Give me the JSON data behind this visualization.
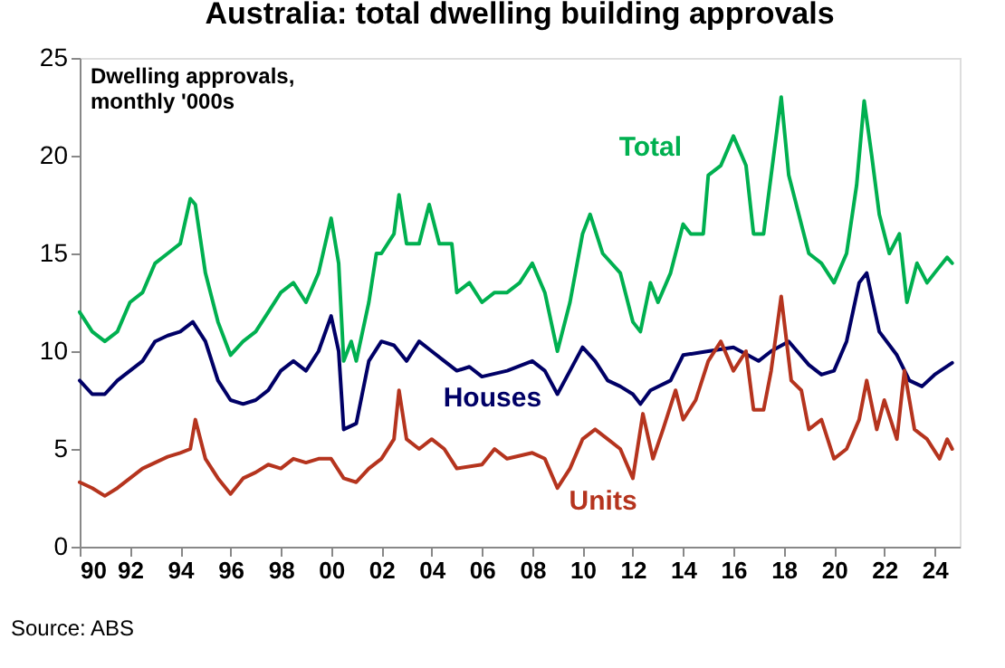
{
  "chart_data": {
    "type": "line",
    "title": "Australia: total dwelling building approvals",
    "ylabel": "Dwelling approvals, monthly '000s",
    "annotations": [
      "Source: ABS"
    ],
    "xlim": [
      1990,
      2025
    ],
    "ylim": [
      0,
      25
    ],
    "yticks": [
      0,
      5,
      10,
      15,
      20,
      25
    ],
    "xticks": [
      {
        "value": 1990,
        "label": "90"
      },
      {
        "value": 1992,
        "label": "92"
      },
      {
        "value": 1994,
        "label": "94"
      },
      {
        "value": 1996,
        "label": "96"
      },
      {
        "value": 1998,
        "label": "98"
      },
      {
        "value": 2000,
        "label": "00"
      },
      {
        "value": 2002,
        "label": "02"
      },
      {
        "value": 2004,
        "label": "04"
      },
      {
        "value": 2006,
        "label": "06"
      },
      {
        "value": 2008,
        "label": "08"
      },
      {
        "value": 2010,
        "label": "10"
      },
      {
        "value": 2012,
        "label": "12"
      },
      {
        "value": 2014,
        "label": "14"
      },
      {
        "value": 2016,
        "label": "16"
      },
      {
        "value": 2018,
        "label": "18"
      },
      {
        "value": 2020,
        "label": "20"
      },
      {
        "value": 2022,
        "label": "22"
      },
      {
        "value": 2024,
        "label": "24"
      }
    ],
    "grid": false,
    "marker": "none",
    "line_style": "solid",
    "series": [
      {
        "name": "Total",
        "color": "#00b050",
        "x": [
          1990,
          1990.5,
          1991,
          1991.5,
          1992,
          1992.5,
          1993,
          1993.5,
          1994,
          1994.4,
          1994.6,
          1995,
          1995.5,
          1996,
          1996.5,
          1997,
          1997.5,
          1998,
          1998.5,
          1999,
          1999.5,
          2000,
          2000.3,
          2000.5,
          2000.8,
          2001,
          2001.5,
          2001.8,
          2002,
          2002.5,
          2002.7,
          2003,
          2003.5,
          2003.9,
          2004.3,
          2004.8,
          2005,
          2005.5,
          2006,
          2006.5,
          2007,
          2007.5,
          2008,
          2008.5,
          2009,
          2009.5,
          2010,
          2010.3,
          2010.8,
          2011.5,
          2012,
          2012.3,
          2012.7,
          2013,
          2013.5,
          2014,
          2014.3,
          2014.8,
          2015,
          2015.5,
          2016,
          2016.5,
          2016.8,
          2017.2,
          2017.5,
          2017.9,
          2018.2,
          2018.6,
          2019,
          2019.5,
          2020,
          2020.5,
          2020.9,
          2021.2,
          2021.5,
          2021.8,
          2022.2,
          2022.6,
          2022.9,
          2023.3,
          2023.7,
          2024,
          2024.5,
          2024.7
        ],
        "values": [
          12,
          11,
          10.5,
          11,
          12.5,
          13,
          14.5,
          15,
          15.5,
          17.8,
          17.5,
          14,
          11.5,
          9.8,
          10.5,
          11,
          12,
          13,
          13.5,
          12.5,
          14,
          16.8,
          14.5,
          9.5,
          10.5,
          9.5,
          12.5,
          15,
          15,
          16,
          18,
          15.5,
          15.5,
          17.5,
          15.5,
          15.5,
          13,
          13.5,
          12.5,
          13,
          13,
          13.5,
          14.5,
          13,
          10,
          12.5,
          16,
          17,
          15,
          14,
          11.5,
          11,
          13.5,
          12.5,
          14,
          16.5,
          16,
          16,
          19,
          19.5,
          21,
          19.5,
          16,
          16,
          19,
          23,
          19,
          17,
          15,
          14.5,
          13.5,
          15,
          18.5,
          22.8,
          20,
          17,
          15,
          16,
          12.5,
          14.5,
          13.5,
          14,
          14.8,
          14.5
        ]
      },
      {
        "name": "Houses",
        "color": "#000066",
        "x": [
          1990,
          1990.5,
          1991,
          1991.5,
          1992,
          1992.5,
          1993,
          1993.5,
          1994,
          1994.5,
          1995,
          1995.5,
          1996,
          1996.5,
          1997,
          1997.5,
          1998,
          1998.5,
          1999,
          1999.5,
          2000,
          2000.3,
          2000.5,
          2001,
          2001.5,
          2002,
          2002.5,
          2003,
          2003.5,
          2004,
          2004.5,
          2005,
          2005.5,
          2006,
          2007,
          2008,
          2008.5,
          2009,
          2009.5,
          2010,
          2010.5,
          2011,
          2011.5,
          2012,
          2012.3,
          2012.7,
          2013.5,
          2014,
          2015,
          2016,
          2017,
          2017.5,
          2018.2,
          2019,
          2019.5,
          2020,
          2020.5,
          2021,
          2021.3,
          2021.8,
          2022.5,
          2023,
          2023.5,
          2024,
          2024.7
        ],
        "values": [
          8.5,
          7.8,
          7.8,
          8.5,
          9,
          9.5,
          10.5,
          10.8,
          11,
          11.5,
          10.5,
          8.5,
          7.5,
          7.3,
          7.5,
          8,
          9,
          9.5,
          9,
          10,
          11.8,
          10,
          6,
          6.3,
          9.5,
          10.5,
          10.3,
          9.5,
          10.5,
          10,
          9.5,
          9,
          9.2,
          8.7,
          9,
          9.5,
          9,
          7.8,
          9,
          10.2,
          9.5,
          8.5,
          8.2,
          7.8,
          7.3,
          8,
          8.5,
          9.8,
          10,
          10.2,
          9.5,
          10,
          10.5,
          9.3,
          8.8,
          9,
          10.5,
          13.5,
          14,
          11,
          9.8,
          8.5,
          8.2,
          8.8,
          9.4
        ]
      },
      {
        "name": "Units",
        "color": "#b5341e",
        "x": [
          1990,
          1990.5,
          1991,
          1991.5,
          1992,
          1992.5,
          1993,
          1993.5,
          1994,
          1994.4,
          1994.6,
          1995,
          1995.5,
          1996,
          1996.5,
          1997,
          1997.5,
          1998,
          1998.5,
          1999,
          1999.5,
          2000,
          2000.5,
          2001,
          2001.5,
          2002,
          2002.5,
          2002.7,
          2003,
          2003.5,
          2004,
          2004.5,
          2005,
          2006,
          2006.5,
          2007,
          2008,
          2008.5,
          2009,
          2009.5,
          2010,
          2010.5,
          2011,
          2011.5,
          2012,
          2012.4,
          2012.8,
          2013.2,
          2013.7,
          2014,
          2014.5,
          2015,
          2015.5,
          2016,
          2016.5,
          2016.8,
          2017.2,
          2017.5,
          2017.9,
          2018.3,
          2018.7,
          2019,
          2019.5,
          2020,
          2020.5,
          2021,
          2021.3,
          2021.7,
          2022,
          2022.5,
          2022.8,
          2023.2,
          2023.7,
          2024.2,
          2024.5,
          2024.7
        ],
        "values": [
          3.3,
          3,
          2.6,
          3,
          3.5,
          4,
          4.3,
          4.6,
          4.8,
          5,
          6.5,
          4.5,
          3.5,
          2.7,
          3.5,
          3.8,
          4.2,
          4,
          4.5,
          4.3,
          4.5,
          4.5,
          3.5,
          3.3,
          4,
          4.5,
          5.5,
          8,
          5.5,
          5,
          5.5,
          5,
          4,
          4.2,
          5,
          4.5,
          4.8,
          4.5,
          3,
          4,
          5.5,
          6,
          5.5,
          5,
          3.5,
          6.8,
          4.5,
          6,
          8,
          6.5,
          7.5,
          9.5,
          10.5,
          9,
          10,
          7,
          7,
          9,
          12.8,
          8.5,
          8,
          6,
          6.5,
          4.5,
          5,
          6.5,
          8.5,
          6,
          7.5,
          5.5,
          9,
          6,
          5.5,
          4.5,
          5.5,
          5
        ]
      }
    ]
  }
}
